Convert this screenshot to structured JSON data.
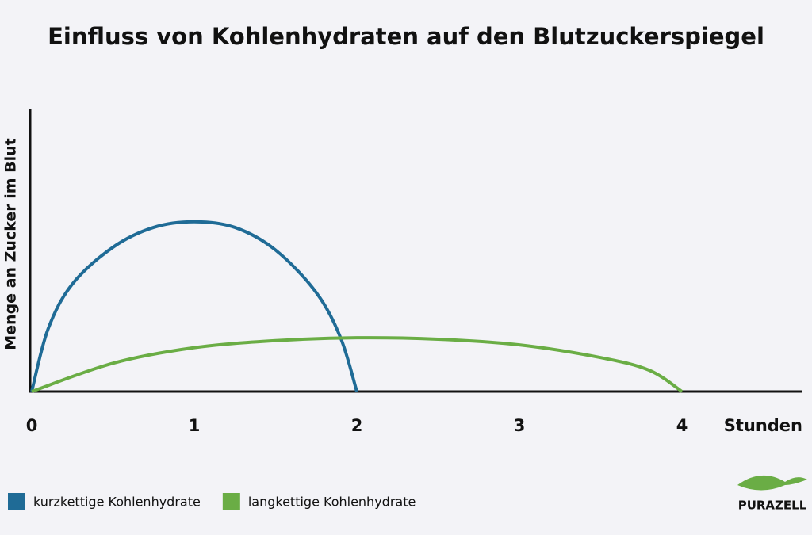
{
  "chart_data": {
    "type": "line",
    "title": "Einfluss von Kohlenhydraten auf den Blutzuckerspiegel",
    "x_label": "Stunden",
    "y_label": "Menge an Zucker im Blut",
    "xlim": [
      0,
      4.75
    ],
    "ylim": [
      0,
      100
    ],
    "xticks": [
      0,
      1,
      2,
      3,
      4
    ],
    "legend_position": "bottom-left",
    "series": [
      {
        "name": "kurzkettige Kohlenhydrate",
        "color": "#1f6b96",
        "x": [
          0,
          0.1,
          0.25,
          0.5,
          0.75,
          1,
          1.25,
          1.5,
          1.75,
          1.9,
          2
        ],
        "values": [
          0,
          22,
          38,
          51,
          58,
          60,
          58,
          50,
          35,
          19,
          0
        ]
      },
      {
        "name": "langkettige Kohlenhydrate",
        "color": "#6aad45",
        "x": [
          0,
          0.5,
          1,
          1.5,
          2,
          2.5,
          3,
          3.5,
          3.8,
          4
        ],
        "values": [
          0,
          10,
          15.5,
          18,
          19,
          18.5,
          16.5,
          12,
          7.5,
          0
        ]
      }
    ]
  },
  "logo": "PURAZELL"
}
